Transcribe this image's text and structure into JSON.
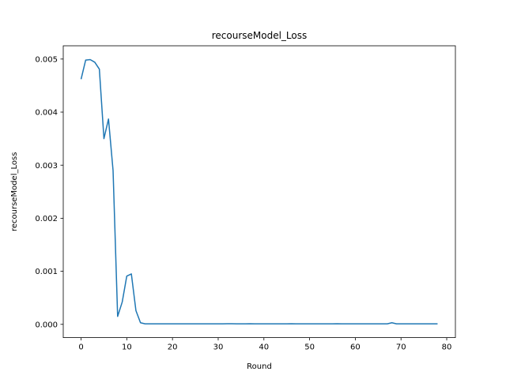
{
  "chart_data": {
    "type": "line",
    "title": "recourseModel_Loss",
    "xlabel": "Round",
    "ylabel": "recourseModel_Loss",
    "xlim": [
      -3.9,
      81.9
    ],
    "ylim": [
      -0.00025,
      0.00525
    ],
    "xticks": [
      0,
      10,
      20,
      30,
      40,
      50,
      60,
      70,
      80
    ],
    "yticks": [
      0.0,
      0.001,
      0.002,
      0.003,
      0.004,
      0.005
    ],
    "ytick_labels": [
      "0.000",
      "0.001",
      "0.002",
      "0.003",
      "0.004",
      "0.005"
    ],
    "grid": false,
    "series": [
      {
        "color": "#1f77b4",
        "x": [
          0,
          1,
          2,
          3,
          4,
          5,
          6,
          7,
          8,
          9,
          10,
          11,
          12,
          13,
          14,
          15,
          16,
          17,
          18,
          19,
          20,
          21,
          22,
          23,
          24,
          25,
          26,
          27,
          28,
          29,
          30,
          31,
          32,
          33,
          34,
          35,
          36,
          37,
          38,
          39,
          40,
          41,
          42,
          43,
          44,
          45,
          46,
          47,
          48,
          49,
          50,
          51,
          52,
          53,
          54,
          55,
          56,
          57,
          58,
          59,
          60,
          61,
          62,
          63,
          64,
          65,
          66,
          67,
          68,
          69,
          70,
          71,
          72,
          73,
          74,
          75,
          76,
          77,
          78
        ],
        "y": [
          0.00462,
          0.00498,
          0.00499,
          0.00494,
          0.00481,
          0.0035,
          0.00387,
          0.0029,
          0.00015,
          0.00042,
          0.00091,
          0.00095,
          0.00026,
          3e-05,
          1e-05,
          1e-05,
          1e-05,
          1e-05,
          1e-05,
          1e-05,
          1e-05,
          1e-05,
          1e-05,
          1e-05,
          1e-05,
          1e-05,
          1e-05,
          1e-05,
          1e-05,
          1e-05,
          1e-05,
          1e-05,
          1.2e-05,
          1.2e-05,
          1e-05,
          1e-05,
          1e-05,
          1.2e-05,
          1e-05,
          1e-05,
          1e-05,
          1e-05,
          1e-05,
          1e-05,
          1e-05,
          1e-05,
          1.2e-05,
          1e-05,
          1e-05,
          1e-05,
          1e-05,
          1e-05,
          1e-05,
          1e-05,
          1e-05,
          1e-05,
          1.2e-05,
          1e-05,
          1e-05,
          1e-05,
          1e-05,
          1e-05,
          1e-05,
          1e-05,
          1e-05,
          1e-05,
          1e-05,
          1e-05,
          3e-05,
          1e-05,
          1e-05,
          1e-05,
          1e-05,
          1e-05,
          1e-05,
          1e-05,
          1e-05,
          1e-05,
          1e-05
        ]
      }
    ]
  }
}
